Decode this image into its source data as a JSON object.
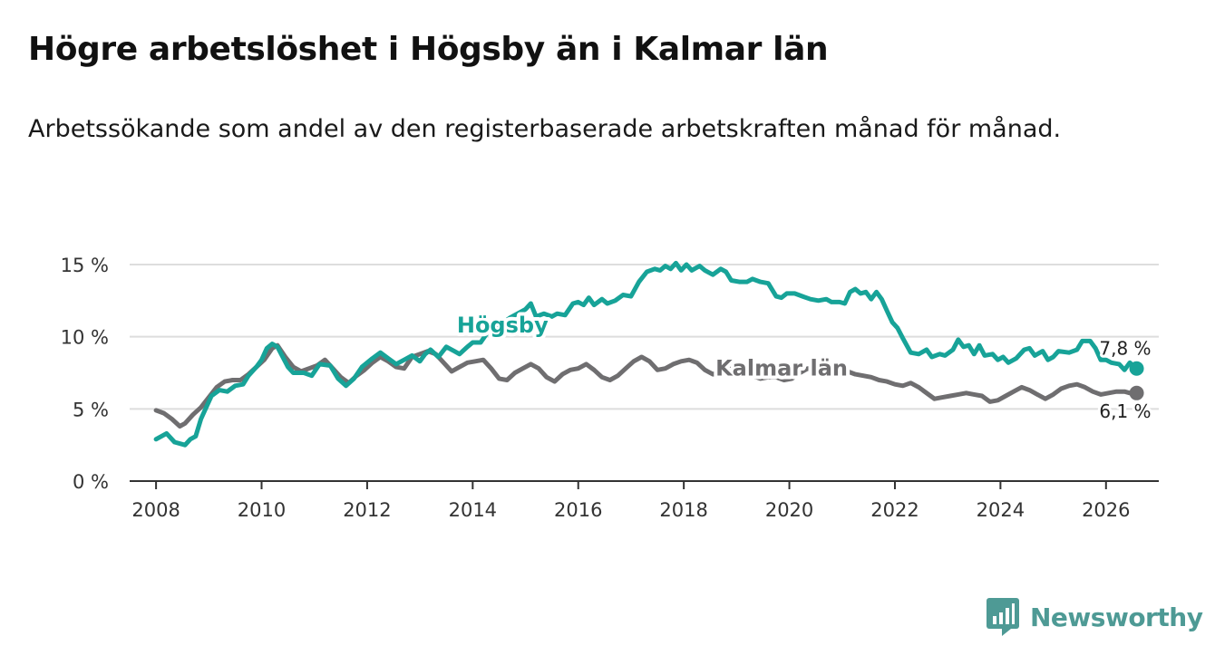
{
  "header": {
    "title": "Högre arbetslöshet i Högsby än i Kalmar län",
    "subtitle": "Arbetssökande som andel av den registerbaserade arbetskraften månad för månad."
  },
  "brand": {
    "name": "Newsworthy",
    "icon": "bar-chart-speech-bubble-icon"
  },
  "colors": {
    "hogsby": "#17a398",
    "kalmar": "#6f6e70",
    "grid": "#dddddd",
    "axis": "#333333",
    "brand": "#4e9a95"
  },
  "chart_data": {
    "type": "line",
    "title": "Högre arbetslöshet i Högsby än i Kalmar län",
    "xlabel": "",
    "ylabel": "",
    "xlim": [
      2007.5,
      2027.0
    ],
    "ylim": [
      0,
      15
    ],
    "x_ticks": [
      2008,
      2010,
      2012,
      2014,
      2016,
      2018,
      2020,
      2022,
      2024,
      2026
    ],
    "y_ticks": [
      0,
      5,
      10,
      15
    ],
    "y_tick_labels": [
      "0 %",
      "5 %",
      "10 %",
      "15 %"
    ],
    "grid": true,
    "series": [
      {
        "name": "Högsby",
        "label": "Högsby",
        "color": "#17a398",
        "end_label": "7,8 %",
        "points": [
          [
            2008.0,
            2.9
          ],
          [
            2008.2,
            3.3
          ],
          [
            2008.35,
            2.7
          ],
          [
            2008.55,
            2.5
          ],
          [
            2008.65,
            2.9
          ],
          [
            2008.75,
            3.1
          ],
          [
            2008.85,
            4.3
          ],
          [
            2008.95,
            5.1
          ],
          [
            2009.05,
            5.9
          ],
          [
            2009.2,
            6.3
          ],
          [
            2009.35,
            6.2
          ],
          [
            2009.5,
            6.6
          ],
          [
            2009.65,
            6.7
          ],
          [
            2009.75,
            7.3
          ],
          [
            2009.9,
            7.9
          ],
          [
            2010.0,
            8.4
          ],
          [
            2010.1,
            9.2
          ],
          [
            2010.2,
            9.5
          ],
          [
            2010.3,
            9.3
          ],
          [
            2010.4,
            8.6
          ],
          [
            2010.5,
            7.9
          ],
          [
            2010.6,
            7.5
          ],
          [
            2010.8,
            7.5
          ],
          [
            2010.95,
            7.3
          ],
          [
            2011.1,
            8.1
          ],
          [
            2011.3,
            8.0
          ],
          [
            2011.45,
            7.1
          ],
          [
            2011.6,
            6.6
          ],
          [
            2011.75,
            7.1
          ],
          [
            2011.9,
            7.9
          ],
          [
            2012.1,
            8.5
          ],
          [
            2012.25,
            8.9
          ],
          [
            2012.4,
            8.5
          ],
          [
            2012.55,
            8.1
          ],
          [
            2012.7,
            8.4
          ],
          [
            2012.85,
            8.7
          ],
          [
            2013.0,
            8.3
          ],
          [
            2013.1,
            8.8
          ],
          [
            2013.2,
            9.1
          ],
          [
            2013.35,
            8.6
          ],
          [
            2013.5,
            9.3
          ],
          [
            2013.65,
            9.0
          ],
          [
            2013.75,
            8.8
          ],
          [
            2013.9,
            9.3
          ],
          [
            2014.0,
            9.6
          ],
          [
            2014.15,
            9.6
          ],
          [
            2014.3,
            10.4
          ],
          [
            2014.45,
            10.3
          ],
          [
            2014.55,
            10.9
          ],
          [
            2014.7,
            11.3
          ],
          [
            2014.85,
            11.6
          ],
          [
            2015.0,
            11.9
          ],
          [
            2015.1,
            12.3
          ],
          [
            2015.2,
            11.4
          ],
          [
            2015.35,
            11.6
          ],
          [
            2015.5,
            11.4
          ],
          [
            2015.6,
            11.6
          ],
          [
            2015.75,
            11.5
          ],
          [
            2015.9,
            12.3
          ],
          [
            2016.0,
            12.4
          ],
          [
            2016.1,
            12.2
          ],
          [
            2016.2,
            12.7
          ],
          [
            2016.3,
            12.2
          ],
          [
            2016.45,
            12.6
          ],
          [
            2016.55,
            12.3
          ],
          [
            2016.7,
            12.5
          ],
          [
            2016.85,
            12.9
          ],
          [
            2017.0,
            12.8
          ],
          [
            2017.15,
            13.8
          ],
          [
            2017.3,
            14.5
          ],
          [
            2017.45,
            14.7
          ],
          [
            2017.55,
            14.6
          ],
          [
            2017.65,
            14.9
          ],
          [
            2017.75,
            14.7
          ],
          [
            2017.85,
            15.1
          ],
          [
            2017.95,
            14.6
          ],
          [
            2018.05,
            15.0
          ],
          [
            2018.15,
            14.6
          ],
          [
            2018.3,
            14.9
          ],
          [
            2018.4,
            14.6
          ],
          [
            2018.55,
            14.3
          ],
          [
            2018.7,
            14.7
          ],
          [
            2018.8,
            14.5
          ],
          [
            2018.9,
            13.9
          ],
          [
            2019.05,
            13.8
          ],
          [
            2019.2,
            13.8
          ],
          [
            2019.3,
            14.0
          ],
          [
            2019.45,
            13.8
          ],
          [
            2019.6,
            13.7
          ],
          [
            2019.75,
            12.8
          ],
          [
            2019.85,
            12.7
          ],
          [
            2019.95,
            13.0
          ],
          [
            2020.1,
            13.0
          ],
          [
            2020.25,
            12.8
          ],
          [
            2020.4,
            12.6
          ],
          [
            2020.55,
            12.5
          ],
          [
            2020.7,
            12.6
          ],
          [
            2020.8,
            12.4
          ],
          [
            2020.95,
            12.4
          ],
          [
            2021.05,
            12.3
          ],
          [
            2021.15,
            13.1
          ],
          [
            2021.25,
            13.3
          ],
          [
            2021.35,
            13.0
          ],
          [
            2021.45,
            13.1
          ],
          [
            2021.55,
            12.6
          ],
          [
            2021.65,
            13.1
          ],
          [
            2021.75,
            12.6
          ],
          [
            2021.85,
            11.8
          ],
          [
            2021.95,
            11.0
          ],
          [
            2022.05,
            10.6
          ],
          [
            2022.15,
            9.9
          ],
          [
            2022.3,
            8.9
          ],
          [
            2022.45,
            8.8
          ],
          [
            2022.6,
            9.1
          ],
          [
            2022.7,
            8.6
          ],
          [
            2022.85,
            8.8
          ],
          [
            2022.95,
            8.7
          ],
          [
            2023.1,
            9.1
          ],
          [
            2023.2,
            9.8
          ],
          [
            2023.3,
            9.3
          ],
          [
            2023.4,
            9.4
          ],
          [
            2023.5,
            8.8
          ],
          [
            2023.6,
            9.4
          ],
          [
            2023.7,
            8.7
          ],
          [
            2023.85,
            8.8
          ],
          [
            2023.95,
            8.4
          ],
          [
            2024.05,
            8.6
          ],
          [
            2024.15,
            8.2
          ],
          [
            2024.3,
            8.5
          ],
          [
            2024.45,
            9.1
          ],
          [
            2024.55,
            9.2
          ],
          [
            2024.65,
            8.7
          ],
          [
            2024.8,
            9.0
          ],
          [
            2024.9,
            8.4
          ],
          [
            2025.0,
            8.6
          ],
          [
            2025.1,
            9.0
          ],
          [
            2025.3,
            8.9
          ],
          [
            2025.45,
            9.1
          ],
          [
            2025.55,
            9.7
          ],
          [
            2025.7,
            9.7
          ],
          [
            2025.8,
            9.2
          ],
          [
            2025.9,
            8.4
          ],
          [
            2026.0,
            8.4
          ],
          [
            2026.1,
            8.2
          ],
          [
            2026.25,
            8.1
          ],
          [
            2026.35,
            7.7
          ],
          [
            2026.45,
            8.2
          ],
          [
            2026.58,
            7.8
          ]
        ]
      },
      {
        "name": "Kalmar län",
        "label": "Kalmar län",
        "color": "#6f6e70",
        "end_label": "6,1 %",
        "points": [
          [
            2008.0,
            4.9
          ],
          [
            2008.15,
            4.7
          ],
          [
            2008.3,
            4.3
          ],
          [
            2008.45,
            3.8
          ],
          [
            2008.55,
            4.0
          ],
          [
            2008.7,
            4.6
          ],
          [
            2008.85,
            5.1
          ],
          [
            2009.0,
            5.8
          ],
          [
            2009.15,
            6.5
          ],
          [
            2009.3,
            6.9
          ],
          [
            2009.45,
            7.0
          ],
          [
            2009.6,
            7.0
          ],
          [
            2009.75,
            7.4
          ],
          [
            2009.9,
            7.9
          ],
          [
            2010.05,
            8.4
          ],
          [
            2010.2,
            9.2
          ],
          [
            2010.3,
            9.4
          ],
          [
            2010.45,
            8.6
          ],
          [
            2010.6,
            7.9
          ],
          [
            2010.75,
            7.6
          ],
          [
            2010.9,
            7.8
          ],
          [
            2011.05,
            8.0
          ],
          [
            2011.2,
            8.4
          ],
          [
            2011.35,
            7.8
          ],
          [
            2011.5,
            7.2
          ],
          [
            2011.65,
            6.8
          ],
          [
            2011.8,
            7.3
          ],
          [
            2011.95,
            7.7
          ],
          [
            2012.1,
            8.2
          ],
          [
            2012.25,
            8.6
          ],
          [
            2012.4,
            8.3
          ],
          [
            2012.55,
            7.9
          ],
          [
            2012.7,
            7.8
          ],
          [
            2012.85,
            8.6
          ],
          [
            2013.0,
            8.8
          ],
          [
            2013.15,
            9.0
          ],
          [
            2013.3,
            8.8
          ],
          [
            2013.45,
            8.2
          ],
          [
            2013.6,
            7.6
          ],
          [
            2013.75,
            7.9
          ],
          [
            2013.9,
            8.2
          ],
          [
            2014.05,
            8.3
          ],
          [
            2014.2,
            8.4
          ],
          [
            2014.35,
            7.8
          ],
          [
            2014.5,
            7.1
          ],
          [
            2014.65,
            7.0
          ],
          [
            2014.8,
            7.5
          ],
          [
            2014.95,
            7.8
          ],
          [
            2015.1,
            8.1
          ],
          [
            2015.25,
            7.8
          ],
          [
            2015.4,
            7.2
          ],
          [
            2015.55,
            6.9
          ],
          [
            2015.7,
            7.4
          ],
          [
            2015.85,
            7.7
          ],
          [
            2016.0,
            7.8
          ],
          [
            2016.15,
            8.1
          ],
          [
            2016.3,
            7.7
          ],
          [
            2016.45,
            7.2
          ],
          [
            2016.6,
            7.0
          ],
          [
            2016.75,
            7.3
          ],
          [
            2016.9,
            7.8
          ],
          [
            2017.05,
            8.3
          ],
          [
            2017.2,
            8.6
          ],
          [
            2017.35,
            8.3
          ],
          [
            2017.5,
            7.7
          ],
          [
            2017.65,
            7.8
          ],
          [
            2017.8,
            8.1
          ],
          [
            2017.95,
            8.3
          ],
          [
            2018.1,
            8.4
          ],
          [
            2018.25,
            8.2
          ],
          [
            2018.4,
            7.7
          ],
          [
            2018.55,
            7.4
          ],
          [
            2018.7,
            7.6
          ],
          [
            2018.85,
            7.9
          ],
          [
            2019.0,
            8.1
          ],
          [
            2019.15,
            7.8
          ],
          [
            2019.3,
            7.3
          ],
          [
            2019.45,
            7.1
          ],
          [
            2019.6,
            7.2
          ],
          [
            2019.75,
            7.2
          ],
          [
            2019.9,
            7.0
          ],
          [
            2020.05,
            7.1
          ],
          [
            2020.2,
            7.5
          ],
          [
            2020.35,
            7.8
          ],
          [
            2020.5,
            7.7
          ],
          [
            2020.65,
            7.4
          ],
          [
            2020.8,
            7.4
          ],
          [
            2020.95,
            7.6
          ],
          [
            2021.1,
            7.6
          ],
          [
            2021.25,
            7.4
          ],
          [
            2021.4,
            7.3
          ],
          [
            2021.55,
            7.2
          ],
          [
            2021.7,
            7.0
          ],
          [
            2021.85,
            6.9
          ],
          [
            2022.0,
            6.7
          ],
          [
            2022.15,
            6.6
          ],
          [
            2022.3,
            6.8
          ],
          [
            2022.45,
            6.5
          ],
          [
            2022.6,
            6.1
          ],
          [
            2022.75,
            5.7
          ],
          [
            2022.9,
            5.8
          ],
          [
            2023.05,
            5.9
          ],
          [
            2023.2,
            6.0
          ],
          [
            2023.35,
            6.1
          ],
          [
            2023.5,
            6.0
          ],
          [
            2023.65,
            5.9
          ],
          [
            2023.8,
            5.5
          ],
          [
            2023.95,
            5.6
          ],
          [
            2024.1,
            5.9
          ],
          [
            2024.25,
            6.2
          ],
          [
            2024.4,
            6.5
          ],
          [
            2024.55,
            6.3
          ],
          [
            2024.7,
            6.0
          ],
          [
            2024.85,
            5.7
          ],
          [
            2025.0,
            6.0
          ],
          [
            2025.15,
            6.4
          ],
          [
            2025.3,
            6.6
          ],
          [
            2025.45,
            6.7
          ],
          [
            2025.6,
            6.5
          ],
          [
            2025.75,
            6.2
          ],
          [
            2025.9,
            6.0
          ],
          [
            2026.05,
            6.1
          ],
          [
            2026.2,
            6.2
          ],
          [
            2026.35,
            6.2
          ],
          [
            2026.45,
            6.1
          ],
          [
            2026.58,
            6.1
          ]
        ]
      }
    ]
  }
}
